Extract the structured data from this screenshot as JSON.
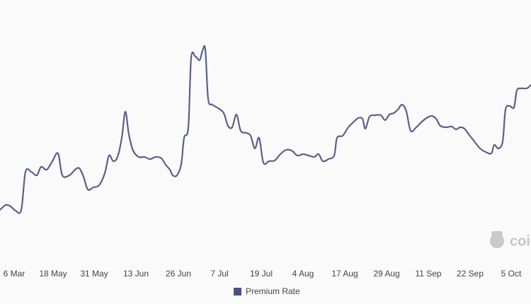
{
  "chart_data": {
    "type": "line",
    "x": [
      0,
      8,
      15,
      22,
      30,
      36,
      44,
      52,
      58,
      66,
      74,
      82,
      88,
      98,
      106,
      112,
      118,
      124,
      132,
      140,
      148,
      154,
      160,
      166,
      172,
      177,
      182,
      188,
      196,
      204,
      212,
      220,
      228,
      234,
      240,
      244,
      250,
      256,
      260,
      266,
      270,
      276,
      282,
      286,
      290,
      294,
      300,
      308,
      316,
      322,
      328,
      334,
      340,
      348,
      354,
      360,
      366,
      372,
      380,
      388,
      396,
      404,
      412,
      420,
      428,
      436,
      444,
      450,
      456,
      464,
      472,
      476,
      484,
      492,
      500,
      506,
      512,
      516,
      522,
      530,
      538,
      544,
      550,
      556,
      562,
      568,
      574,
      580,
      588,
      596,
      604,
      610,
      616,
      622,
      630,
      638,
      644,
      650,
      656,
      662,
      670,
      678,
      686,
      694,
      698,
      704,
      710,
      714,
      720,
      726,
      730,
      736,
      744,
      750
    ],
    "series": [
      {
        "name": "Premium Rate",
        "color": "#5b6088",
        "values": [
          83,
          90,
          88,
          82,
          83,
          137,
          137,
          132,
          144,
          140,
          152,
          163,
          132,
          132,
          140,
          142,
          130,
          112,
          115,
          118,
          135,
          160,
          152,
          158,
          185,
          222,
          190,
          167,
          158,
          158,
          155,
          158,
          156,
          147,
          140,
          132,
          132,
          148,
          185,
          200,
          298,
          300,
          295,
          308,
          310,
          240,
          232,
          227,
          220,
          202,
          200,
          218,
          195,
          192,
          188,
          170,
          185,
          150,
          152,
          153,
          162,
          168,
          167,
          160,
          162,
          160,
          158,
          162,
          152,
          155,
          160,
          185,
          188,
          200,
          208,
          213,
          212,
          198,
          215,
          217,
          217,
          210,
          218,
          220,
          225,
          232,
          222,
          195,
          200,
          208,
          214,
          216,
          212,
          202,
          200,
          201,
          197,
          200,
          198,
          190,
          180,
          170,
          165,
          163,
          175,
          170,
          180,
          225,
          230,
          228,
          252,
          255,
          255,
          260
        ]
      }
    ],
    "xlim": [
      0,
      750
    ],
    "ylim": [
      0,
      380
    ],
    "xticks": [
      {
        "value": 20,
        "label": "6 Mar"
      },
      {
        "value": 75,
        "label": "18 May"
      },
      {
        "value": 133,
        "label": "31 May"
      },
      {
        "value": 192,
        "label": "13 Jun"
      },
      {
        "value": 252,
        "label": "26 Jun"
      },
      {
        "value": 310,
        "label": "7 Jul"
      },
      {
        "value": 369,
        "label": "19 Jul"
      },
      {
        "value": 428,
        "label": "4 Aug"
      },
      {
        "value": 487,
        "label": "17 Aug"
      },
      {
        "value": 546,
        "label": "29 Aug"
      },
      {
        "value": 605,
        "label": "11 Sep"
      },
      {
        "value": 664,
        "label": "22 Sep"
      },
      {
        "value": 722,
        "label": "5 Oct"
      }
    ],
    "legend_color": "#4a5180",
    "watermark": "coi"
  }
}
